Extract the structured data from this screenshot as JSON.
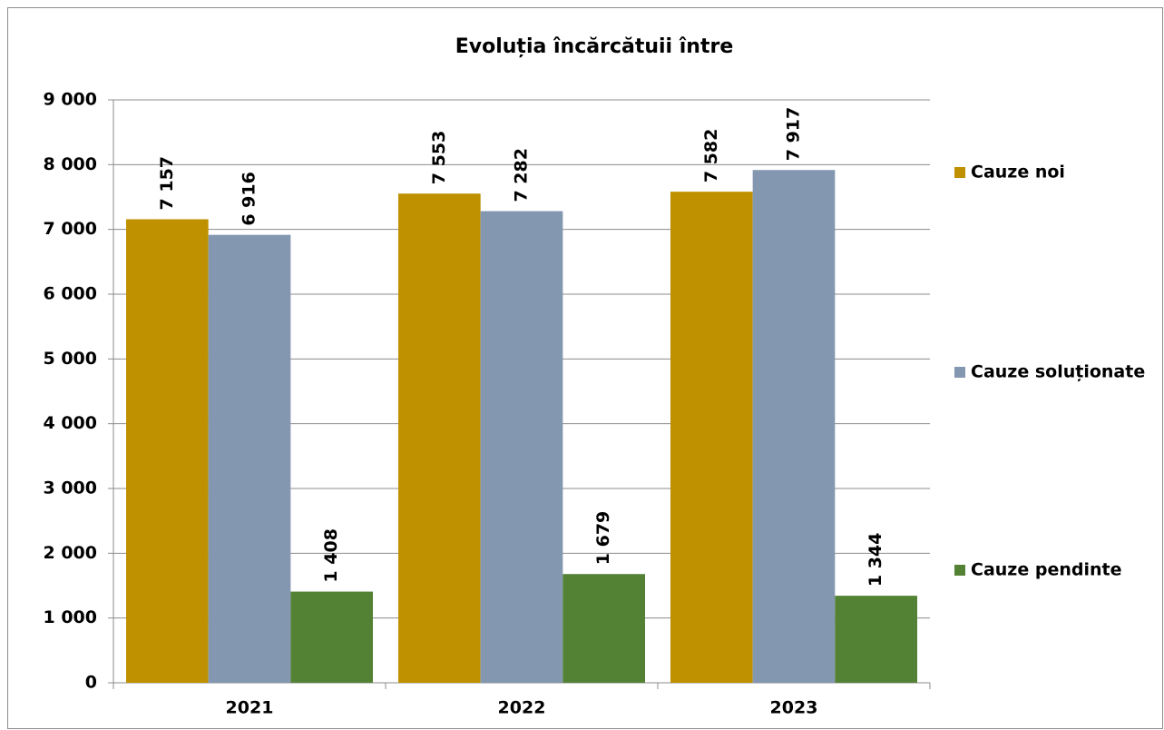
{
  "chart_data": {
    "type": "bar",
    "title": "Evoluția încărcătuii între",
    "categories": [
      "2021",
      "2022",
      "2023"
    ],
    "series": [
      {
        "name": "Cauze noi",
        "color": "#bf9000",
        "values": [
          7157,
          7553,
          7582
        ],
        "value_labels": [
          "7 157",
          "7 553",
          "7 582"
        ]
      },
      {
        "name": "Cauze soluționate",
        "color": "#8497b0",
        "values": [
          6916,
          7282,
          7917
        ],
        "value_labels": [
          "6 916",
          "7 282",
          "7 917"
        ]
      },
      {
        "name": "Cauze pendinte",
        "color": "#548235",
        "values": [
          1408,
          1679,
          1344
        ],
        "value_labels": [
          "1 408",
          "1 679",
          "1 344"
        ]
      }
    ],
    "ylim": [
      0,
      9000
    ],
    "yticks": [
      0,
      {
        "value": 1000,
        "label": "1 000"
      },
      {
        "value": 2000,
        "label": "2 000"
      },
      {
        "value": 3000,
        "label": "3 000"
      },
      {
        "value": 4000,
        "label": "4 000"
      },
      {
        "value": 5000,
        "label": "5 000"
      },
      {
        "value": 6000,
        "label": "6 000"
      },
      {
        "value": 7000,
        "label": "7 000"
      },
      {
        "value": 8000,
        "label": "8 000"
      },
      {
        "value": 9000,
        "label": "9 000"
      }
    ],
    "grid": true,
    "legend": "right"
  }
}
